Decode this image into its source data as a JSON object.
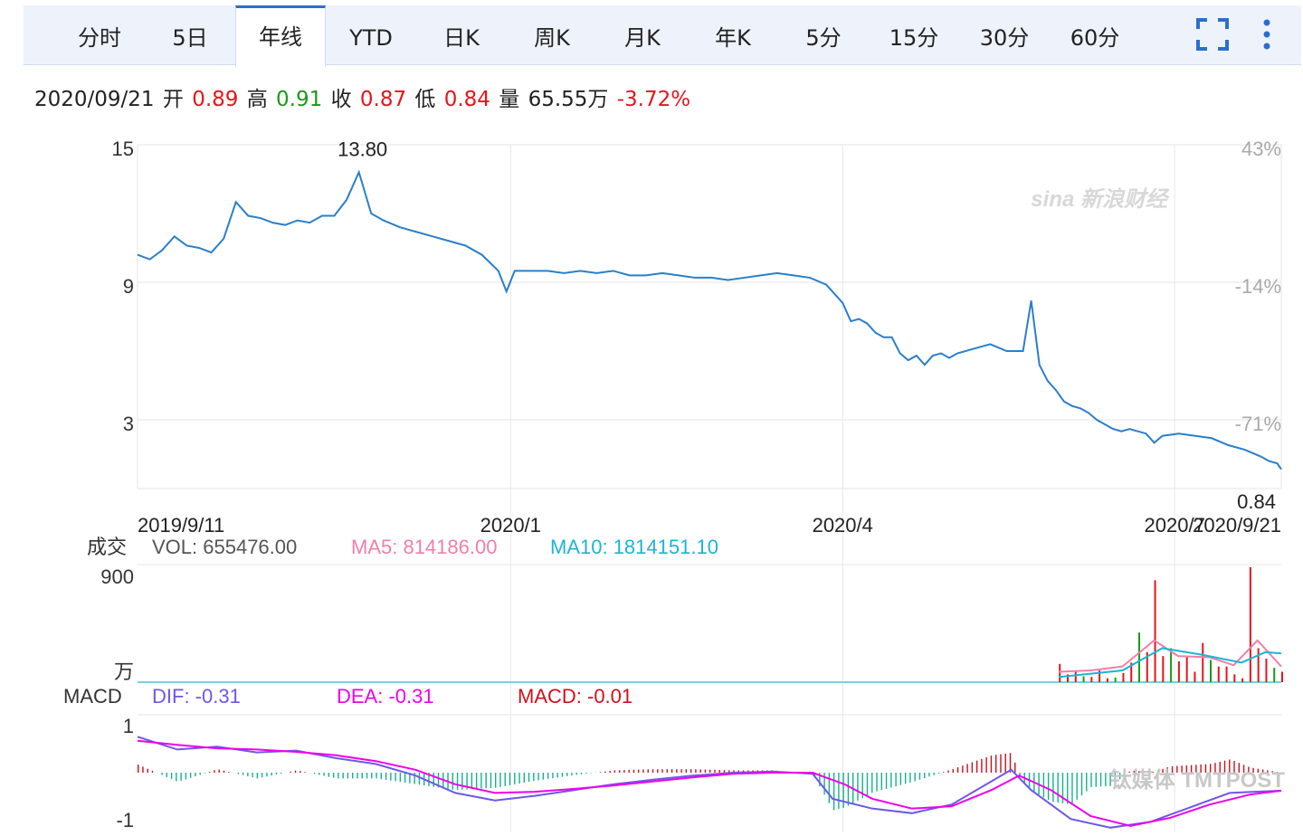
{
  "tabs": [
    {
      "label": "分时",
      "active": false
    },
    {
      "label": "5日",
      "active": false
    },
    {
      "label": "年线",
      "active": true
    },
    {
      "label": "YTD",
      "active": false
    },
    {
      "label": "日K",
      "active": false
    },
    {
      "label": "周K",
      "active": false
    },
    {
      "label": "月K",
      "active": false
    },
    {
      "label": "年K",
      "active": false
    },
    {
      "label": "5分",
      "active": false
    },
    {
      "label": "15分",
      "active": false
    },
    {
      "label": "30分",
      "active": false
    },
    {
      "label": "60分",
      "active": false
    }
  ],
  "toolbar": {
    "fullscreen_icon": "fullscreen-icon",
    "menu_icon": "more-vertical-icon"
  },
  "info": {
    "date": "2020/09/21",
    "open_label": "开",
    "open": "0.89",
    "high_label": "高",
    "high": "0.91",
    "close_label": "收",
    "close": "0.87",
    "low_label": "低",
    "low": "0.84",
    "vol_label": "量",
    "vol": "65.55万",
    "change": "-3.72%"
  },
  "colors": {
    "price": "#2a7fc9",
    "up": "#e4161c",
    "down": "#1a9a1a",
    "ma5": "#f27fa7",
    "ma10": "#19b6d4",
    "dif": "#6f57e8",
    "dea": "#ee00ee",
    "grid": "#e6e6e6"
  },
  "watermark": "sina 新浪财经",
  "logo": "钛媒体 TMTPOST",
  "chart_data": [
    {
      "type": "line",
      "name": "price",
      "y_ticks_left": [
        "15",
        "9",
        "3"
      ],
      "y_ticks_right": [
        "43%",
        "-14%",
        "-71%"
      ],
      "x_ticks": [
        "2019/9/11",
        "2020/1",
        "2020/4",
        "2020/7",
        "2020/9/21"
      ],
      "max_label": "13.80",
      "min_label": "0.84",
      "points": [
        [
          0,
          10.2
        ],
        [
          3,
          10.0
        ],
        [
          6,
          10.4
        ],
        [
          9,
          11.0
        ],
        [
          12,
          10.6
        ],
        [
          15,
          10.5
        ],
        [
          18,
          10.3
        ],
        [
          21,
          10.9
        ],
        [
          24,
          12.5
        ],
        [
          27,
          11.9
        ],
        [
          30,
          11.8
        ],
        [
          33,
          11.6
        ],
        [
          36,
          11.5
        ],
        [
          39,
          11.7
        ],
        [
          42,
          11.6
        ],
        [
          45,
          11.9
        ],
        [
          48,
          11.9
        ],
        [
          51,
          12.6
        ],
        [
          54,
          13.8
        ],
        [
          57,
          12.0
        ],
        [
          60,
          11.7
        ],
        [
          64,
          11.4
        ],
        [
          68,
          11.2
        ],
        [
          72,
          11.0
        ],
        [
          76,
          10.8
        ],
        [
          80,
          10.6
        ],
        [
          84,
          10.2
        ],
        [
          88,
          9.5
        ],
        [
          90,
          8.6
        ],
        [
          92,
          9.5
        ],
        [
          96,
          9.5
        ],
        [
          100,
          9.5
        ],
        [
          104,
          9.4
        ],
        [
          108,
          9.5
        ],
        [
          112,
          9.4
        ],
        [
          116,
          9.5
        ],
        [
          120,
          9.3
        ],
        [
          124,
          9.3
        ],
        [
          128,
          9.4
        ],
        [
          132,
          9.3
        ],
        [
          136,
          9.2
        ],
        [
          140,
          9.2
        ],
        [
          144,
          9.1
        ],
        [
          148,
          9.2
        ],
        [
          152,
          9.3
        ],
        [
          156,
          9.4
        ],
        [
          160,
          9.3
        ],
        [
          164,
          9.2
        ],
        [
          168,
          8.9
        ],
        [
          172,
          8.1
        ],
        [
          174,
          7.3
        ],
        [
          176,
          7.4
        ],
        [
          178,
          7.2
        ],
        [
          180,
          6.8
        ],
        [
          182,
          6.6
        ],
        [
          184,
          6.6
        ],
        [
          186,
          5.9
        ],
        [
          188,
          5.6
        ],
        [
          190,
          5.8
        ],
        [
          192,
          5.4
        ],
        [
          194,
          5.8
        ],
        [
          196,
          5.9
        ],
        [
          198,
          5.7
        ],
        [
          200,
          5.9
        ],
        [
          204,
          6.1
        ],
        [
          208,
          6.3
        ],
        [
          212,
          6.0
        ],
        [
          216,
          6.0
        ],
        [
          218,
          8.2
        ],
        [
          220,
          5.4
        ],
        [
          222,
          4.7
        ],
        [
          224,
          4.3
        ],
        [
          226,
          3.8
        ],
        [
          228,
          3.6
        ],
        [
          230,
          3.5
        ],
        [
          232,
          3.3
        ],
        [
          234,
          3.0
        ],
        [
          236,
          2.8
        ],
        [
          238,
          2.6
        ],
        [
          240,
          2.5
        ],
        [
          242,
          2.6
        ],
        [
          244,
          2.5
        ],
        [
          246,
          2.4
        ],
        [
          248,
          2.0
        ],
        [
          250,
          2.3
        ],
        [
          254,
          2.4
        ],
        [
          258,
          2.3
        ],
        [
          262,
          2.2
        ],
        [
          266,
          1.9
        ],
        [
          270,
          1.7
        ],
        [
          274,
          1.4
        ],
        [
          276,
          1.2
        ],
        [
          278,
          1.1
        ],
        [
          279,
          0.84
        ]
      ],
      "x_range": [
        0,
        279
      ],
      "ylim": [
        0,
        15
      ]
    },
    {
      "type": "bar",
      "name": "成交",
      "label": "成交",
      "vol_label": "VOL: 655476.00",
      "ma5_label": "MA5: 814186.00",
      "ma10_label": "MA10: 1814151.10",
      "y_ticks": [
        "900",
        "万"
      ],
      "ylim": [
        0,
        900
      ],
      "bars": [
        [
          232,
          140,
          "up"
        ],
        [
          234,
          60,
          "up"
        ],
        [
          236,
          80,
          "up"
        ],
        [
          238,
          45,
          "down"
        ],
        [
          240,
          40,
          "up"
        ],
        [
          242,
          90,
          "up"
        ],
        [
          244,
          30,
          "up"
        ],
        [
          246,
          35,
          "down"
        ],
        [
          248,
          70,
          "up"
        ],
        [
          250,
          150,
          "up"
        ],
        [
          252,
          380,
          "down"
        ],
        [
          254,
          230,
          "up"
        ],
        [
          256,
          780,
          "up"
        ],
        [
          258,
          200,
          "up"
        ],
        [
          260,
          260,
          "down"
        ],
        [
          262,
          160,
          "up"
        ],
        [
          264,
          200,
          "up"
        ],
        [
          266,
          80,
          "up"
        ],
        [
          268,
          300,
          "up"
        ],
        [
          270,
          170,
          "down"
        ],
        [
          272,
          120,
          "up"
        ],
        [
          274,
          120,
          "up"
        ],
        [
          276,
          60,
          "up"
        ],
        [
          278,
          30,
          "up"
        ],
        [
          280,
          880,
          "up"
        ],
        [
          282,
          260,
          "up"
        ],
        [
          284,
          180,
          "up"
        ],
        [
          286,
          110,
          "down"
        ],
        [
          288,
          80,
          "up"
        ]
      ],
      "ma5": [
        [
          232,
          80
        ],
        [
          240,
          90
        ],
        [
          248,
          120
        ],
        [
          256,
          320
        ],
        [
          262,
          200
        ],
        [
          270,
          190
        ],
        [
          276,
          130
        ],
        [
          282,
          320
        ],
        [
          288,
          120
        ]
      ],
      "ma10": [
        [
          232,
          40
        ],
        [
          248,
          90
        ],
        [
          258,
          260
        ],
        [
          268,
          210
        ],
        [
          278,
          150
        ],
        [
          284,
          230
        ],
        [
          288,
          220
        ]
      ]
    },
    {
      "type": "bar",
      "name": "MACD",
      "label": "MACD",
      "dif_label": "DIF: -0.31",
      "dea_label": "DEA: -0.31",
      "macd_label": "MACD: -0.01",
      "y_ticks": [
        "1",
        "-1"
      ],
      "ylim": [
        -1,
        1
      ],
      "dif": [
        [
          0,
          0.62
        ],
        [
          10,
          0.4
        ],
        [
          20,
          0.45
        ],
        [
          30,
          0.35
        ],
        [
          40,
          0.38
        ],
        [
          50,
          0.25
        ],
        [
          60,
          0.15
        ],
        [
          70,
          -0.05
        ],
        [
          80,
          -0.35
        ],
        [
          90,
          -0.48
        ],
        [
          100,
          -0.4
        ],
        [
          110,
          -0.3
        ],
        [
          120,
          -0.2
        ],
        [
          130,
          -0.12
        ],
        [
          140,
          -0.05
        ],
        [
          150,
          0.0
        ],
        [
          160,
          0.02
        ],
        [
          170,
          -0.02
        ],
        [
          175,
          -0.45
        ],
        [
          185,
          -0.62
        ],
        [
          195,
          -0.7
        ],
        [
          205,
          -0.55
        ],
        [
          215,
          -0.15
        ],
        [
          220,
          0.05
        ],
        [
          225,
          -0.3
        ],
        [
          235,
          -0.8
        ],
        [
          245,
          -0.95
        ],
        [
          255,
          -0.85
        ],
        [
          265,
          -0.6
        ],
        [
          275,
          -0.35
        ],
        [
          288,
          -0.31
        ]
      ],
      "dea": [
        [
          0,
          0.55
        ],
        [
          10,
          0.48
        ],
        [
          20,
          0.42
        ],
        [
          30,
          0.4
        ],
        [
          40,
          0.36
        ],
        [
          50,
          0.3
        ],
        [
          60,
          0.2
        ],
        [
          70,
          0.05
        ],
        [
          80,
          -0.2
        ],
        [
          90,
          -0.35
        ],
        [
          100,
          -0.33
        ],
        [
          110,
          -0.28
        ],
        [
          120,
          -0.22
        ],
        [
          130,
          -0.15
        ],
        [
          140,
          -0.08
        ],
        [
          150,
          -0.02
        ],
        [
          160,
          0.0
        ],
        [
          170,
          0.0
        ],
        [
          178,
          -0.2
        ],
        [
          185,
          -0.45
        ],
        [
          195,
          -0.62
        ],
        [
          205,
          -0.58
        ],
        [
          215,
          -0.3
        ],
        [
          222,
          -0.05
        ],
        [
          230,
          -0.3
        ],
        [
          240,
          -0.75
        ],
        [
          250,
          -0.92
        ],
        [
          260,
          -0.78
        ],
        [
          270,
          -0.55
        ],
        [
          280,
          -0.38
        ],
        [
          288,
          -0.31
        ]
      ]
    }
  ]
}
